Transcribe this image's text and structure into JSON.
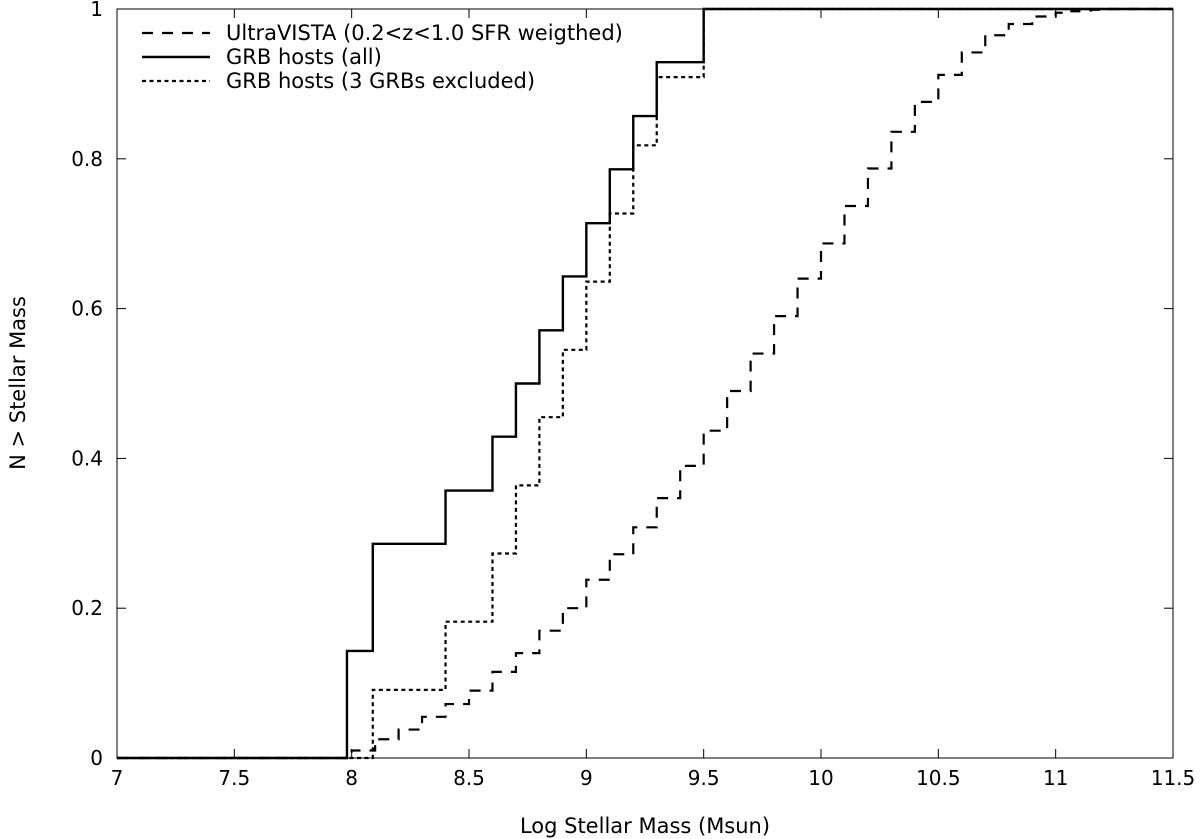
{
  "chart_data": {
    "type": "line",
    "step": true,
    "title": "",
    "xlabel": "Log Stellar Mass (Msun)",
    "ylabel": "N > Stellar Mass",
    "xlim": [
      7,
      11.5
    ],
    "ylim": [
      0,
      1
    ],
    "xticks": [
      "7",
      "7.5",
      "8",
      "8.5",
      "9",
      "9.5",
      "10",
      "10.5",
      "11",
      "11.5"
    ],
    "yticks": [
      "0",
      "0.2",
      "0.4",
      "0.6",
      "0.8",
      "1"
    ],
    "grid": false,
    "legend_position": "top-left",
    "series": [
      {
        "name": "UltraVISTA (0.2<z<1.0 SFR weigthed)",
        "style": "dashed",
        "x": [
          7,
          8,
          8.05,
          8.1,
          8.15,
          8.2,
          8.3,
          8.35,
          8.4,
          8.45,
          8.5,
          8.55,
          8.6,
          8.65,
          8.7,
          8.75,
          8.8,
          8.85,
          8.9,
          8.95,
          9,
          9.05,
          9.1,
          9.15,
          9.2,
          9.25,
          9.3,
          9.35,
          9.4,
          9.45,
          9.5,
          9.55,
          9.6,
          9.65,
          9.7,
          9.75,
          9.8,
          9.85,
          9.9,
          9.95,
          10,
          10.05,
          10.1,
          10.15,
          10.2,
          10.25,
          10.3,
          10.35,
          10.4,
          10.45,
          10.5,
          10.55,
          10.6,
          10.65,
          10.7,
          10.75,
          10.8,
          10.85,
          10.9,
          10.95,
          11,
          11.05,
          11.1,
          11.15,
          11.2,
          11.5
        ],
        "y": [
          0,
          0.01,
          0.01,
          0.025,
          0.025,
          0.038,
          0.055,
          0.055,
          0.072,
          0.072,
          0.09,
          0.09,
          0.115,
          0.115,
          0.14,
          0.14,
          0.17,
          0.17,
          0.2,
          0.2,
          0.238,
          0.238,
          0.272,
          0.272,
          0.308,
          0.308,
          0.347,
          0.347,
          0.39,
          0.39,
          0.437,
          0.437,
          0.49,
          0.49,
          0.54,
          0.54,
          0.59,
          0.59,
          0.64,
          0.64,
          0.687,
          0.687,
          0.737,
          0.737,
          0.787,
          0.787,
          0.836,
          0.836,
          0.876,
          0.876,
          0.912,
          0.912,
          0.942,
          0.942,
          0.965,
          0.965,
          0.98,
          0.98,
          0.99,
          0.99,
          0.995,
          0.997,
          0.998,
          0.999,
          1,
          1
        ]
      },
      {
        "name": "GRB hosts (all)",
        "style": "solid",
        "x": [
          7,
          7.98,
          8.09,
          8.4,
          8.6,
          8.7,
          8.8,
          8.9,
          9,
          9.1,
          9.2,
          9.3,
          9.5,
          11.5
        ],
        "y": [
          0,
          0.143,
          0.286,
          0.357,
          0.429,
          0.5,
          0.571,
          0.643,
          0.714,
          0.786,
          0.857,
          0.929,
          1,
          1
        ]
      },
      {
        "name": "GRB hosts (3 GRBs excluded)",
        "style": "dotted",
        "x": [
          7,
          8.09,
          8.4,
          8.6,
          8.7,
          8.8,
          8.9,
          9,
          9.1,
          9.2,
          9.3,
          9.5,
          11.5
        ],
        "y": [
          0,
          0.091,
          0.182,
          0.273,
          0.364,
          0.455,
          0.545,
          0.636,
          0.727,
          0.818,
          0.909,
          1,
          1
        ]
      }
    ]
  }
}
